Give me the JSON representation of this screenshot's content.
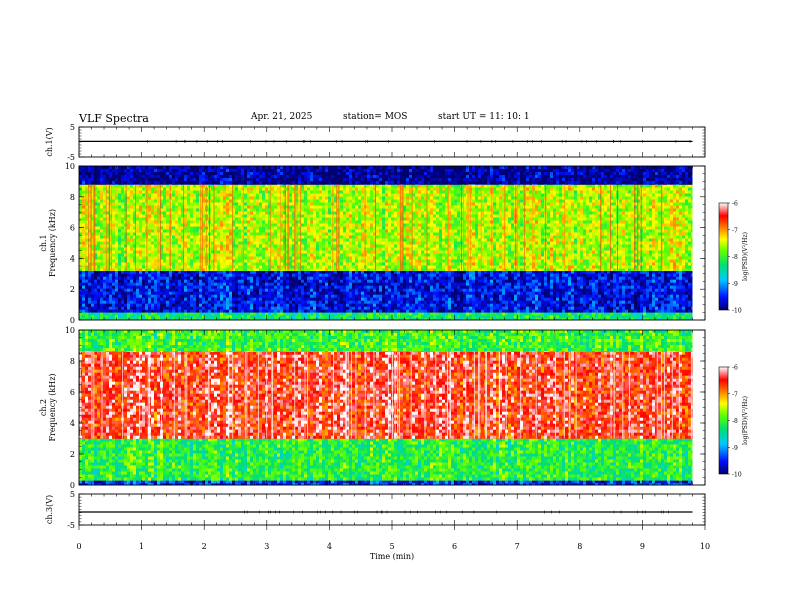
{
  "header": {
    "title": "VLF Spectra",
    "date": "Apr. 21, 2025",
    "station": "station= MOS",
    "start_ut": "start  UT =   11: 10: 1"
  },
  "chart_data": [
    {
      "type": "line",
      "name_label": "ch.1(V)",
      "ylabel": "ch.1(V)",
      "ylim": [
        -5,
        5
      ],
      "yticks": [
        "5",
        "-5"
      ],
      "xlim": [
        0,
        10
      ],
      "series": [
        {
          "x": [
            0,
            9.8
          ],
          "y": [
            0.2,
            0.2
          ]
        }
      ]
    },
    {
      "type": "heatmap",
      "ylabel": "ch.1\nFrequency (kHz)",
      "ylabel_lines": [
        "ch.1",
        "Frequency (kHz)"
      ],
      "ylim": [
        0,
        10
      ],
      "yticks": [
        "0",
        "2",
        "4",
        "6",
        "8",
        "10"
      ],
      "xlim": [
        0,
        10
      ],
      "data_end_min": 9.8,
      "colorbar": {
        "label": "log(PSD)(V²/Hz)",
        "range": [
          -10,
          -6
        ],
        "ticks": [
          "-6",
          "-7",
          "-8",
          "-9",
          "-10"
        ]
      },
      "bands": [
        {
          "from_khz": 0.0,
          "to_khz": 0.5,
          "level": -8.3
        },
        {
          "from_khz": 0.5,
          "to_khz": 3.2,
          "level": -9.6
        },
        {
          "from_khz": 3.2,
          "to_khz": 8.8,
          "level": -7.6
        },
        {
          "from_khz": 8.8,
          "to_khz": 10.0,
          "level": -9.9
        }
      ]
    },
    {
      "type": "heatmap",
      "ylabel": "ch.2\nFrequency (kHz)",
      "ylabel_lines": [
        "ch.2",
        "Frequency (kHz)"
      ],
      "ylim": [
        0,
        10
      ],
      "yticks": [
        "0",
        "2",
        "4",
        "6",
        "8",
        "10"
      ],
      "xlim": [
        0,
        10
      ],
      "data_end_min": 9.8,
      "colorbar": {
        "label": "log(PSD)(V²/Hz)",
        "range": [
          -10,
          -6
        ],
        "ticks": [
          "-6",
          "-7",
          "-8",
          "-9",
          "-10"
        ]
      },
      "bands": [
        {
          "from_khz": 0.0,
          "to_khz": 0.3,
          "level": -9.4
        },
        {
          "from_khz": 0.3,
          "to_khz": 3.0,
          "level": -8.1
        },
        {
          "from_khz": 3.0,
          "to_khz": 8.6,
          "level": -6.5
        },
        {
          "from_khz": 8.6,
          "to_khz": 10.0,
          "level": -8.0
        }
      ]
    },
    {
      "type": "line",
      "ylabel": "ch.3(V)",
      "ylim": [
        -5,
        5
      ],
      "yticks": [
        "5",
        "-5"
      ],
      "xlim": [
        0,
        10
      ],
      "series": [
        {
          "x": [
            0,
            9.8
          ],
          "y": [
            -0.8,
            -0.8
          ]
        }
      ]
    }
  ],
  "xaxis": {
    "label": "Time (min)",
    "ticks": [
      "0",
      "1",
      "2",
      "3",
      "4",
      "5",
      "6",
      "7",
      "8",
      "9",
      "10"
    ]
  }
}
